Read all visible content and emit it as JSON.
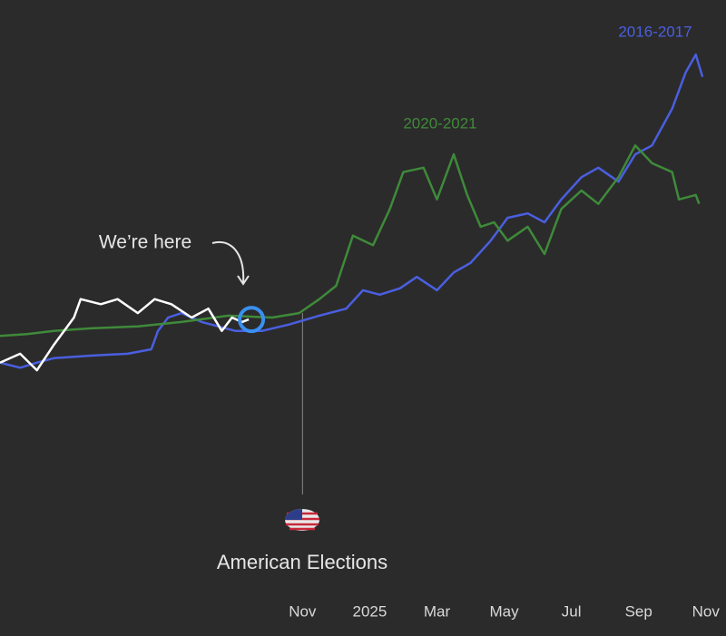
{
  "chart_data": {
    "type": "line",
    "annotations": [
      "We’re here",
      "American Elections"
    ],
    "xlim": [
      -9,
      12.6
    ],
    "ylim": [
      0,
      100
    ],
    "xticks": [
      {
        "value": 0,
        "label": "Nov"
      },
      {
        "value": 2,
        "label": "2025"
      },
      {
        "value": 4,
        "label": "Mar"
      },
      {
        "value": 6,
        "label": "May"
      },
      {
        "value": 8,
        "label": "Jul"
      },
      {
        "value": 10,
        "label": "Sep"
      },
      {
        "value": 12,
        "label": "Nov"
      }
    ],
    "series": [
      {
        "name": "2016-2017",
        "color": "#4a5fe0",
        "x": [
          -9.0,
          -8.4,
          -7.9,
          -7.4,
          -6.3,
          -5.2,
          -4.5,
          -4.3,
          -4.0,
          -3.6,
          -3.0,
          -2.5,
          -2.0,
          -1.2,
          -0.4,
          0.5,
          1.3,
          1.8,
          2.3,
          2.9,
          3.4,
          4.0,
          4.5,
          5.0,
          5.6,
          6.1,
          6.7,
          7.2,
          7.7,
          8.3,
          8.8,
          9.4,
          9.9,
          10.4,
          11.0,
          11.4,
          11.7,
          11.9
        ],
        "values": [
          42.9,
          42.1,
          42.9,
          43.6,
          44.0,
          44.3,
          45.0,
          47.9,
          50.0,
          50.7,
          49.3,
          48.6,
          47.9,
          47.9,
          48.9,
          50.3,
          51.4,
          54.3,
          53.6,
          54.6,
          56.4,
          54.3,
          57.1,
          58.6,
          62.1,
          65.7,
          66.4,
          65.0,
          68.6,
          72.1,
          73.6,
          71.4,
          75.7,
          77.1,
          82.9,
          88.6,
          91.4,
          87.9
        ]
      },
      {
        "name": "2020-2021",
        "color": "#3f8a3a",
        "x": [
          -9.0,
          -8.2,
          -7.4,
          -6.3,
          -4.9,
          -3.6,
          -2.2,
          -0.9,
          -0.1,
          0.5,
          1.0,
          1.5,
          2.1,
          2.6,
          3.0,
          3.6,
          4.0,
          4.5,
          4.9,
          5.3,
          5.7,
          6.1,
          6.7,
          7.2,
          7.7,
          8.3,
          8.8,
          9.4,
          9.9,
          10.4,
          11.0,
          11.2,
          11.7,
          11.8
        ],
        "values": [
          47.1,
          47.4,
          47.9,
          48.3,
          48.6,
          49.3,
          50.3,
          50.0,
          50.7,
          52.9,
          55.0,
          62.9,
          61.4,
          67.1,
          72.9,
          73.6,
          68.6,
          75.7,
          69.3,
          64.3,
          65.0,
          62.1,
          64.3,
          60.0,
          67.1,
          70.0,
          67.9,
          72.1,
          77.1,
          74.3,
          72.9,
          68.6,
          69.3,
          67.9
        ]
      },
      {
        "color": "#ffffff",
        "x": [
          -9.0,
          -8.4,
          -7.9,
          -7.4,
          -6.8,
          -6.6,
          -6.0,
          -5.5,
          -4.9,
          -4.4,
          -3.9,
          -3.3,
          -2.8,
          -2.4,
          -2.1,
          -1.8,
          -1.6
        ],
        "values": [
          42.9,
          44.3,
          41.7,
          45.7,
          50.0,
          52.9,
          52.1,
          52.9,
          50.7,
          52.9,
          52.1,
          50.0,
          51.4,
          47.9,
          50.0,
          49.3,
          49.7
        ]
      }
    ]
  }
}
